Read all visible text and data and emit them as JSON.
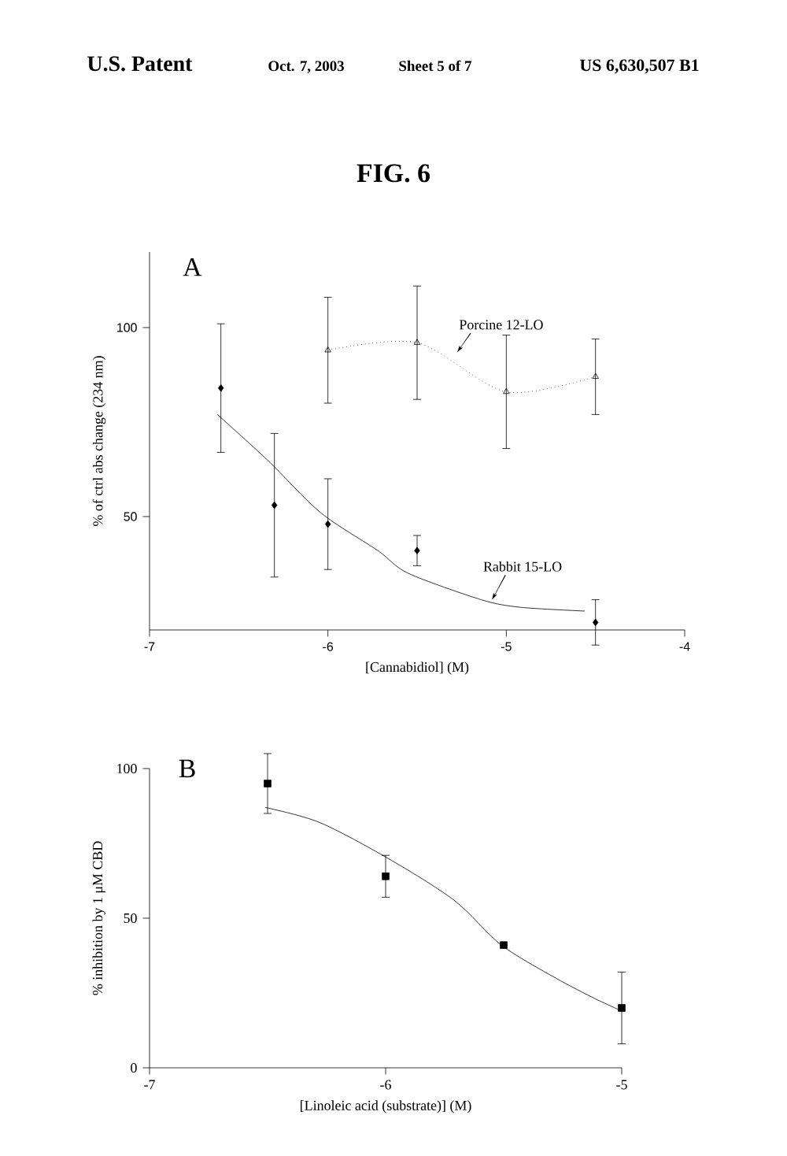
{
  "chart_data": [
    {
      "type": "scatter",
      "xlabel": "[Cannabidiol] (M)",
      "ylabel": "% of ctrl abs change (234 nm)",
      "annotations": [
        "U.S. Patent",
        "Oct. 7, 2003",
        "Sheet 5 of 7",
        "US 6,630,507 B1",
        "FIG. 6",
        "A"
      ],
      "xlim": [
        -7,
        -4
      ],
      "ylim": [
        20,
        120
      ],
      "xticks": [
        -7,
        -6,
        -5,
        -4
      ],
      "yticks": [
        50,
        100
      ],
      "series": [
        {
          "type": "scatter",
          "color": "#000000",
          "marker": "diamond",
          "x": [
            -6.6,
            -6.3,
            -6.0,
            -5.5,
            -4.5
          ],
          "values": [
            84,
            53,
            48,
            41,
            22
          ],
          "errors": [
            17,
            19,
            12,
            4,
            6
          ]
        },
        {
          "name": "Rabbit 15-LO",
          "type": "line",
          "color": "#000000",
          "x": [
            -6.62,
            -6.34,
            -6.04,
            -5.72,
            -5.55,
            -5.14,
            -4.92,
            -4.56
          ],
          "values": [
            77,
            65,
            51,
            41,
            35,
            28,
            26,
            25
          ]
        },
        {
          "name": "Porcine 12-LO",
          "type": "line",
          "color": "#000000",
          "marker": "triangle",
          "line_style": "dotted",
          "x": [
            -6.0,
            -5.5,
            -5.0,
            -4.5
          ],
          "values": [
            94,
            96,
            83,
            87
          ],
          "errors": [
            14,
            15,
            15,
            10
          ]
        }
      ]
    },
    {
      "type": "scatter",
      "xlabel": "[Linoleic acid (substrate)] (M)",
      "ylabel": "% inhibition by 1 μM CBD",
      "annotations": [
        "B"
      ],
      "xlim": [
        -7,
        -5
      ],
      "ylim": [
        0,
        100
      ],
      "xticks": [
        -7,
        -6,
        -5
      ],
      "yticks": [
        0,
        50,
        100
      ],
      "series": [
        {
          "type": "scatter",
          "color": "#000000",
          "marker": "square",
          "x": [
            -6.5,
            -6.0,
            -5.5,
            -5.0
          ],
          "values": [
            95,
            64,
            41,
            20
          ],
          "errors": [
            10,
            7,
            null,
            12
          ]
        },
        {
          "type": "line",
          "color": "#000000",
          "x": [
            -6.51,
            -6.28,
            -5.99,
            -5.71,
            -5.51,
            -5.28,
            -5.11,
            -5.0
          ],
          "values": [
            87,
            82,
            70,
            56,
            41,
            30,
            23,
            19
          ]
        }
      ]
    }
  ]
}
